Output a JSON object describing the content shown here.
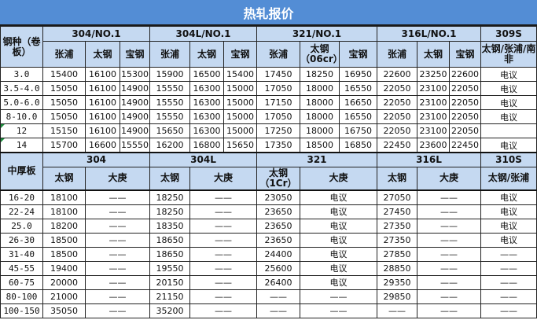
{
  "title": "热轧报价",
  "coil": {
    "corner_label": "钢种（卷板）",
    "groups": [
      {
        "label": "304/NO.1",
        "span": 3
      },
      {
        "label": "304L/NO.1",
        "span": 3
      },
      {
        "label": "321/NO.1",
        "span": 3
      },
      {
        "label": "316L/NO.1",
        "span": 3
      },
      {
        "label": "309S",
        "span": 1
      }
    ],
    "subheaders": [
      "张浦",
      "太钢",
      "宝钢",
      "张浦",
      "太钢",
      "宝钢",
      "张浦",
      "太钢（06cr）",
      "宝钢",
      "张浦",
      "太钢",
      "宝钢",
      "太钢/张浦/南非"
    ],
    "rows": [
      {
        "spec": "3.0",
        "values": [
          "15400",
          "16100",
          "15300",
          "15900",
          "16500",
          "15400",
          "17450",
          "18250",
          "16950",
          "22600",
          "23250",
          "22600",
          "电议"
        ]
      },
      {
        "spec": "3.5-4.0",
        "values": [
          "15050",
          "16100",
          "14900",
          "15550",
          "16300",
          "15000",
          "17050",
          "18000",
          "16550",
          "22050",
          "23100",
          "22050",
          "电议"
        ]
      },
      {
        "spec": "5.0-6.0",
        "values": [
          "15050",
          "16100",
          "14900",
          "15550",
          "16300",
          "15000",
          "17150",
          "18000",
          "16650",
          "22050",
          "23100",
          "22050",
          "电议"
        ]
      },
      {
        "spec": "8-10.0",
        "values": [
          "15050",
          "16100",
          "14900",
          "15550",
          "16300",
          "15000",
          "17050",
          "18000",
          "16550",
          "22050",
          "23100",
          "22050",
          "电议"
        ]
      },
      {
        "spec": "12",
        "values": [
          "15150",
          "16100",
          "14900",
          "15650",
          "16300",
          "15000",
          "17250",
          "18000",
          "16750",
          "22050",
          "23100",
          "22050",
          ""
        ]
      },
      {
        "spec": "14",
        "values": [
          "15700",
          "16600",
          "15550",
          "16200",
          "16800",
          "15650",
          "17350",
          "18500",
          "16850",
          "22450",
          "23600",
          "22450",
          "电议"
        ]
      }
    ]
  },
  "plate": {
    "corner_label": "中厚板",
    "groups": [
      {
        "label": "304",
        "span": 3
      },
      {
        "label": "304L",
        "span": 3
      },
      {
        "label": "321",
        "span": 3
      },
      {
        "label": "316L",
        "span": 3
      },
      {
        "label": "310S",
        "span": 1
      }
    ],
    "subheaders": [
      {
        "label": "太钢",
        "span": 1
      },
      {
        "label": "大庚",
        "span": 2
      },
      {
        "label": "太钢",
        "span": 1
      },
      {
        "label": "大庚",
        "span": 2
      },
      {
        "label": "太钢（1Cr）",
        "span": 1
      },
      {
        "label": "大庚",
        "span": 2
      },
      {
        "label": "太钢",
        "span": 1
      },
      {
        "label": "大庚",
        "span": 2
      },
      {
        "label": "太钢/张浦",
        "span": 1
      }
    ],
    "rows": [
      {
        "spec": "16-20",
        "values": [
          "18100",
          "——",
          "18250",
          "——",
          "23050",
          "电议",
          "27050",
          "——",
          "电议"
        ]
      },
      {
        "spec": "22-24",
        "values": [
          "18100",
          "——",
          "18250",
          "——",
          "23650",
          "电议",
          "27450",
          "——",
          "电议"
        ]
      },
      {
        "spec": "25.0",
        "values": [
          "18200",
          "——",
          "18350",
          "——",
          "23650",
          "电议",
          "27350",
          "——",
          "电议"
        ]
      },
      {
        "spec": "26-30",
        "values": [
          "18500",
          "——",
          "18650",
          "——",
          "23650",
          "电议",
          "27350",
          "——",
          "电议"
        ]
      },
      {
        "spec": "31-40",
        "values": [
          "18500",
          "——",
          "18650",
          "——",
          "24400",
          "电议",
          "27850",
          "——",
          "——"
        ]
      },
      {
        "spec": "45-55",
        "values": [
          "19400",
          "——",
          "19550",
          "——",
          "25600",
          "电议",
          "28850",
          "——",
          "——"
        ]
      },
      {
        "spec": "60-75",
        "values": [
          "20000",
          "——",
          "20150",
          "——",
          "26400",
          "电议",
          "29350",
          "——",
          "——"
        ]
      },
      {
        "spec": "80-100",
        "values": [
          "21000",
          "——",
          "21150",
          "——",
          "——",
          "——",
          "29850",
          "——",
          "——"
        ]
      },
      {
        "spec": "100-150",
        "values": [
          "35050",
          "——",
          "35200",
          "——",
          "——",
          "——",
          "——",
          "——",
          "——"
        ]
      }
    ]
  }
}
